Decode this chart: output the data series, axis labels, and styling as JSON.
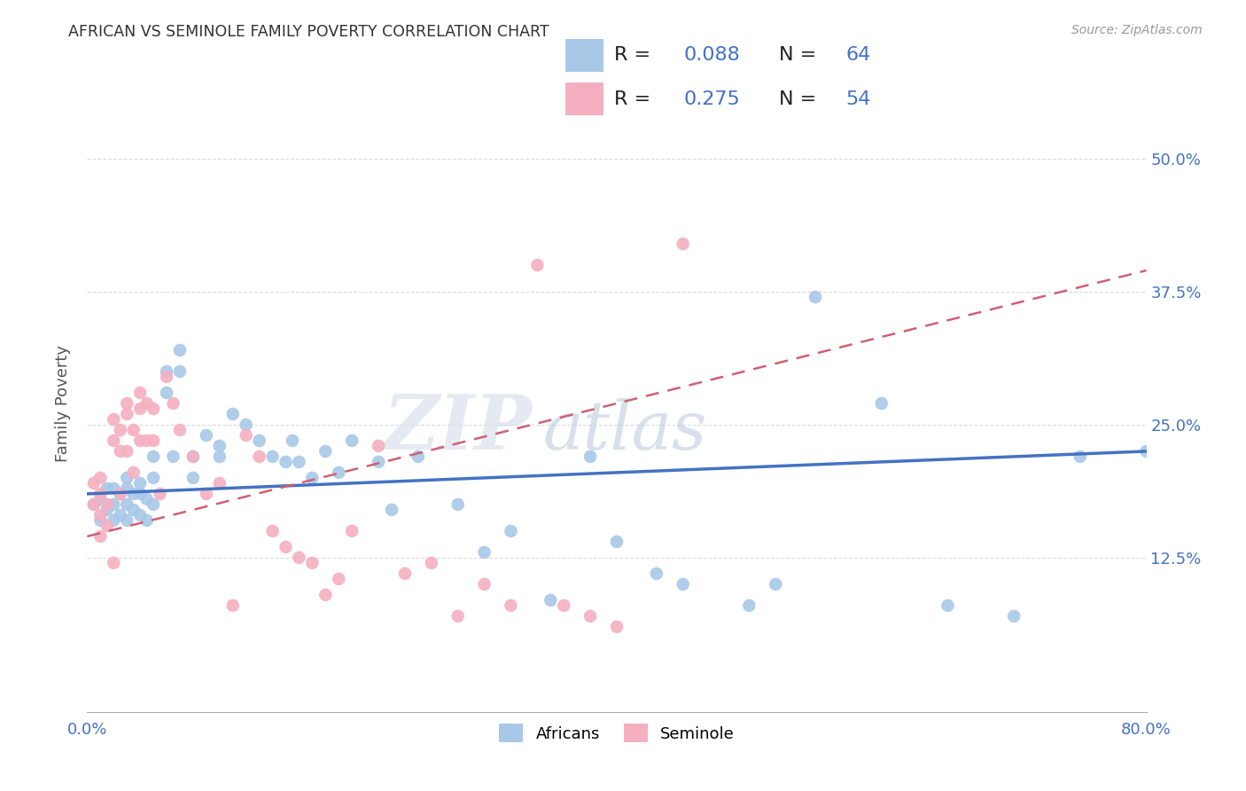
{
  "title": "AFRICAN VS SEMINOLE FAMILY POVERTY CORRELATION CHART",
  "source": "Source: ZipAtlas.com",
  "ylabel": "Family Poverty",
  "ytick_labels": [
    "12.5%",
    "25.0%",
    "37.5%",
    "50.0%"
  ],
  "ytick_values": [
    0.125,
    0.25,
    0.375,
    0.5
  ],
  "xlim": [
    0.0,
    0.8
  ],
  "ylim": [
    -0.02,
    0.56
  ],
  "african_R": 0.088,
  "african_N": 64,
  "seminole_R": 0.275,
  "seminole_N": 54,
  "african_color": "#a8c8e8",
  "seminole_color": "#f4b0c0",
  "trendline_african_color": "#4472c4",
  "trendline_seminole_color": "#d06070",
  "legend_text_color": "#4472c4",
  "title_color": "#333333",
  "watermark_zip": "ZIP",
  "watermark_atlas": "atlas",
  "background_color": "#ffffff",
  "grid_color": "#cccccc",
  "african_x": [
    0.005,
    0.01,
    0.01,
    0.015,
    0.015,
    0.02,
    0.02,
    0.02,
    0.025,
    0.025,
    0.03,
    0.03,
    0.03,
    0.03,
    0.035,
    0.035,
    0.04,
    0.04,
    0.04,
    0.045,
    0.045,
    0.05,
    0.05,
    0.05,
    0.06,
    0.06,
    0.065,
    0.07,
    0.07,
    0.08,
    0.08,
    0.09,
    0.1,
    0.1,
    0.11,
    0.12,
    0.13,
    0.14,
    0.15,
    0.155,
    0.16,
    0.17,
    0.18,
    0.19,
    0.2,
    0.22,
    0.23,
    0.25,
    0.28,
    0.3,
    0.32,
    0.35,
    0.38,
    0.4,
    0.43,
    0.45,
    0.5,
    0.52,
    0.55,
    0.6,
    0.65,
    0.7,
    0.75,
    0.8
  ],
  "african_y": [
    0.175,
    0.18,
    0.16,
    0.19,
    0.17,
    0.19,
    0.175,
    0.16,
    0.185,
    0.165,
    0.2,
    0.19,
    0.175,
    0.16,
    0.185,
    0.17,
    0.195,
    0.185,
    0.165,
    0.18,
    0.16,
    0.22,
    0.2,
    0.175,
    0.3,
    0.28,
    0.22,
    0.32,
    0.3,
    0.22,
    0.2,
    0.24,
    0.23,
    0.22,
    0.26,
    0.25,
    0.235,
    0.22,
    0.215,
    0.235,
    0.215,
    0.2,
    0.225,
    0.205,
    0.235,
    0.215,
    0.17,
    0.22,
    0.175,
    0.13,
    0.15,
    0.085,
    0.22,
    0.14,
    0.11,
    0.1,
    0.08,
    0.1,
    0.37,
    0.27,
    0.08,
    0.07,
    0.22,
    0.225
  ],
  "seminole_x": [
    0.005,
    0.005,
    0.01,
    0.01,
    0.01,
    0.01,
    0.015,
    0.015,
    0.02,
    0.02,
    0.02,
    0.025,
    0.025,
    0.025,
    0.03,
    0.03,
    0.03,
    0.035,
    0.035,
    0.04,
    0.04,
    0.04,
    0.045,
    0.045,
    0.05,
    0.05,
    0.055,
    0.06,
    0.065,
    0.07,
    0.08,
    0.09,
    0.1,
    0.11,
    0.12,
    0.13,
    0.14,
    0.15,
    0.16,
    0.17,
    0.18,
    0.19,
    0.2,
    0.22,
    0.24,
    0.26,
    0.28,
    0.3,
    0.32,
    0.34,
    0.36,
    0.38,
    0.4,
    0.45
  ],
  "seminole_y": [
    0.195,
    0.175,
    0.2,
    0.185,
    0.165,
    0.145,
    0.175,
    0.155,
    0.255,
    0.235,
    0.12,
    0.245,
    0.225,
    0.185,
    0.27,
    0.26,
    0.225,
    0.245,
    0.205,
    0.28,
    0.265,
    0.235,
    0.27,
    0.235,
    0.265,
    0.235,
    0.185,
    0.295,
    0.27,
    0.245,
    0.22,
    0.185,
    0.195,
    0.08,
    0.24,
    0.22,
    0.15,
    0.135,
    0.125,
    0.12,
    0.09,
    0.105,
    0.15,
    0.23,
    0.11,
    0.12,
    0.07,
    0.1,
    0.08,
    0.4,
    0.08,
    0.07,
    0.06,
    0.42
  ],
  "african_trend_x0": 0.0,
  "african_trend_x1": 0.8,
  "african_trend_y0": 0.185,
  "african_trend_y1": 0.225,
  "seminole_trend_x0": 0.0,
  "seminole_trend_x1": 0.8,
  "seminole_trend_y0": 0.145,
  "seminole_trend_y1": 0.395
}
